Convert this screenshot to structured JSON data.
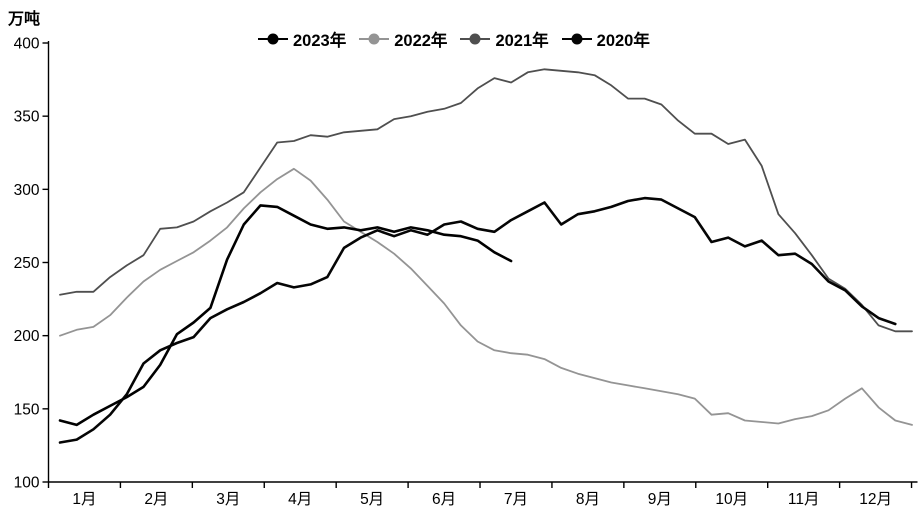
{
  "chart_data": {
    "type": "line",
    "title": "",
    "ylabel": "万吨",
    "xlabel": "",
    "ylim": [
      100,
      400
    ],
    "yticks": [
      100,
      150,
      200,
      250,
      300,
      350,
      400
    ],
    "grid": false,
    "legend_position": "top-center",
    "x_axis": {
      "months": [
        "1月",
        "2月",
        "3月",
        "4月",
        "5月",
        "6月",
        "7月",
        "8月",
        "9月",
        "10月",
        "11月",
        "12月"
      ],
      "points_per_month": 4.3,
      "note": "weekly data points starting at 1月"
    },
    "legend": [
      {
        "label": "2023年",
        "color": "#000000"
      },
      {
        "label": "2022年",
        "color": "#949494"
      },
      {
        "label": "2021年",
        "color": "#4f4f4f"
      },
      {
        "label": "2020年",
        "color": "#050505"
      }
    ],
    "series": [
      {
        "name": "2022",
        "label": "2022年",
        "color": "#949494",
        "width": 1.8,
        "values": [
          200,
          204,
          206,
          214,
          226,
          237,
          245,
          251,
          257,
          265,
          274,
          287,
          298,
          307,
          314,
          306,
          293,
          278,
          271,
          264,
          256,
          246,
          234,
          222,
          207,
          196,
          190,
          188,
          187,
          184,
          178,
          174,
          171,
          168,
          166,
          164,
          162,
          160,
          157,
          146,
          147,
          142,
          141,
          140,
          143,
          145,
          149,
          157,
          164,
          151,
          142,
          139
        ]
      },
      {
        "name": "2021",
        "label": "2021年",
        "color": "#4f4f4f",
        "width": 1.8,
        "values": [
          228,
          230,
          230,
          240,
          248,
          255,
          273,
          274,
          278,
          285,
          291,
          298,
          315,
          332,
          333,
          337,
          336,
          339,
          340,
          341,
          348,
          350,
          353,
          355,
          359,
          369,
          376,
          373,
          380,
          382,
          381,
          380,
          378,
          371,
          362,
          362,
          358,
          347,
          338,
          338,
          331,
          334,
          316,
          283,
          270,
          255,
          239,
          232,
          221,
          207,
          203,
          203
        ]
      },
      {
        "name": "2020",
        "label": "2020年",
        "color": "#050505",
        "width": 2.6,
        "values": [
          127,
          129,
          136,
          146,
          160,
          181,
          190,
          195,
          199,
          212,
          218,
          223,
          229,
          236,
          233,
          235,
          240,
          260,
          267,
          272,
          268,
          272,
          269,
          276,
          278,
          273,
          271,
          279,
          285,
          291,
          276,
          283,
          285,
          288,
          292,
          294,
          293,
          287,
          281,
          264,
          267,
          261,
          265,
          255,
          256,
          249,
          237,
          231,
          220,
          212,
          208
        ]
      },
      {
        "name": "2023",
        "label": "2023年",
        "color": "#000000",
        "width": 2.6,
        "values": [
          142,
          139,
          146,
          152,
          158,
          165,
          180,
          201,
          209,
          219,
          252,
          276,
          289,
          288,
          282,
          276,
          273,
          274,
          272,
          274,
          271,
          274,
          272,
          269,
          268,
          265,
          257,
          251
        ]
      }
    ]
  }
}
